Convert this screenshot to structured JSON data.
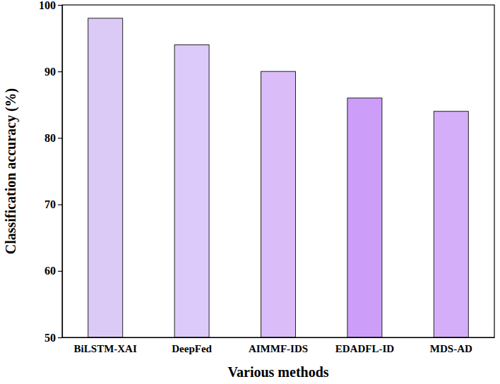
{
  "chart_data": {
    "type": "bar",
    "x_label": "Various methods",
    "y_label": "Classification accuracy (%)",
    "categories": [
      "BiLSTM-XAI",
      "DeepFed",
      "AIMMF-IDS",
      "EDADFL-ID",
      "MDS-AD"
    ],
    "values": [
      98,
      94,
      90,
      86,
      84
    ],
    "colors": [
      "#dccaf6",
      "#dccafa",
      "#d9bcf8",
      "#cc9ef9",
      "#d5aef9"
    ],
    "ylim": [
      50,
      100
    ],
    "yticks": [
      50,
      60,
      70,
      80,
      90,
      100
    ],
    "grid": false
  }
}
